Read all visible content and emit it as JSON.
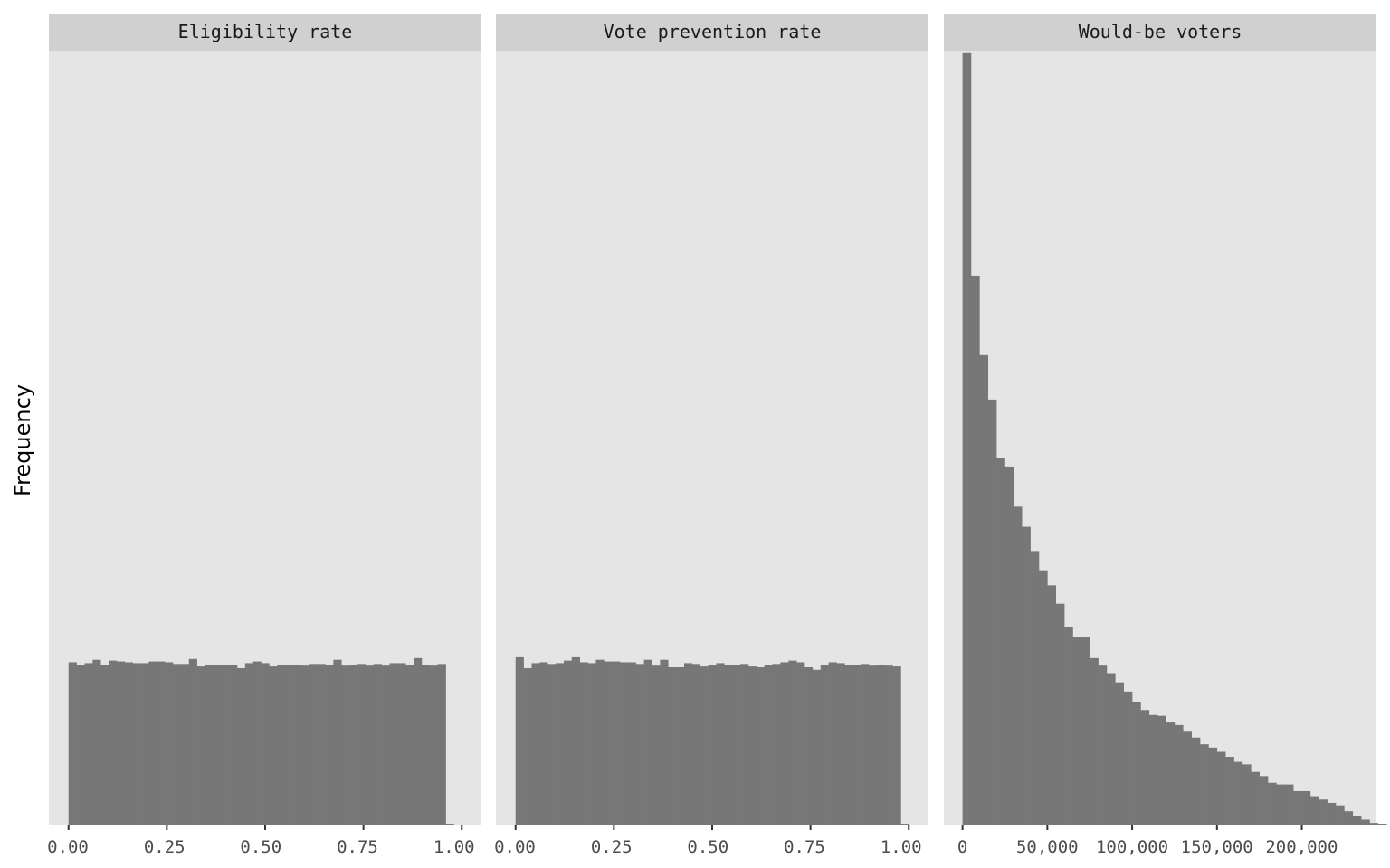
{
  "ylabel": "Frequency",
  "colors": {
    "panel": "#e5e5e5",
    "strip": "#d0d0d0",
    "bar": "#777777",
    "tick": "#333333"
  },
  "chart_data": [
    {
      "type": "bar",
      "title": "Eligibility rate",
      "xlim": [
        -0.05,
        1.05
      ],
      "ylim": [
        0,
        925
      ],
      "xticks": [
        0,
        0.25,
        0.5,
        0.75,
        1.0
      ],
      "xtick_labels": [
        "0.00",
        "0.25",
        "0.50",
        "0.75",
        "1.00"
      ],
      "bin_start": 0,
      "bin_width": 0.02041,
      "values": [
        194,
        191,
        193,
        197,
        191,
        196,
        195,
        194,
        193,
        193,
        195,
        195,
        194,
        192,
        192,
        198,
        189,
        191,
        191,
        191,
        191,
        187,
        193,
        195,
        193,
        189,
        191,
        191,
        191,
        190,
        192,
        192,
        191,
        197,
        190,
        191,
        192,
        190,
        192,
        190,
        193,
        193,
        191,
        199,
        191,
        190,
        192,
        1
      ]
    },
    {
      "type": "bar",
      "title": "Vote prevention rate",
      "xlim": [
        -0.05,
        1.05
      ],
      "ylim": [
        0,
        925
      ],
      "xticks": [
        0,
        0.25,
        0.5,
        0.75,
        1.0
      ],
      "xtick_labels": [
        "0.00",
        "0.25",
        "0.50",
        "0.75",
        "1.00"
      ],
      "bin_start": 0,
      "bin_width": 0.02041,
      "values": [
        200,
        187,
        193,
        194,
        192,
        193,
        196,
        200,
        194,
        193,
        197,
        195,
        195,
        194,
        194,
        192,
        197,
        190,
        197,
        188,
        188,
        193,
        192,
        189,
        191,
        193,
        191,
        191,
        192,
        189,
        188,
        191,
        192,
        194,
        196,
        194,
        188,
        185,
        191,
        194,
        193,
        191,
        191,
        192,
        190,
        191,
        190,
        189,
        1
      ]
    },
    {
      "type": "bar",
      "title": "Would-be voters",
      "xlim": [
        -11000,
        244000
      ],
      "ylim": [
        0,
        925
      ],
      "xticks": [
        0,
        50000,
        100000,
        150000,
        200000
      ],
      "xtick_labels": [
        "0",
        "50,000",
        "100,000",
        "150,000",
        "200,000"
      ],
      "bin_start": 0,
      "bin_width": 5000,
      "values": [
        922,
        656,
        561,
        508,
        438,
        428,
        380,
        356,
        327,
        304,
        286,
        264,
        236,
        224,
        224,
        199,
        190,
        181,
        170,
        159,
        147,
        137,
        131,
        130,
        122,
        119,
        111,
        104,
        96,
        92,
        87,
        81,
        75,
        72,
        63,
        58,
        50,
        48,
        48,
        40,
        40,
        34,
        30,
        26,
        23,
        16,
        10,
        6,
        2,
        1
      ]
    }
  ]
}
